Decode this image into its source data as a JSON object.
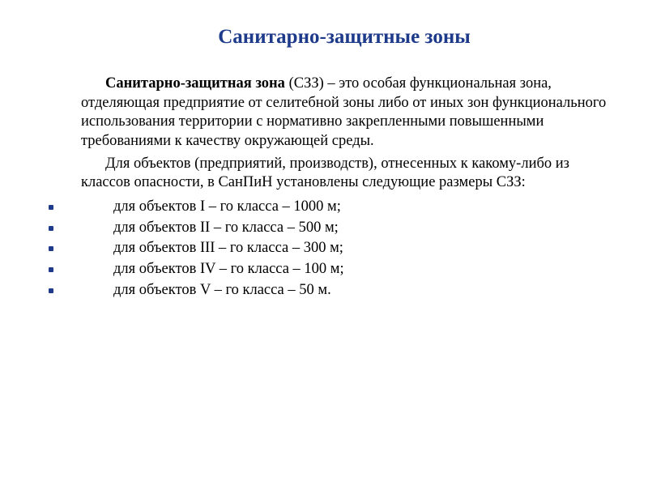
{
  "title": "Санитарно-защитные зоны",
  "para1_bold": "Санитарно-защитная зона",
  "para1_rest": " (СЗЗ)  – это особая функциональная зона, отделяющая предприятие от селитебной зоны либо от иных зон функционального использования территории с нормативно закрепленными повышенными требованиями к качеству окружающей среды.",
  "para2": "Для объектов (предприятий, производств), отнесенных к какому-либо из классов опасности, в СанПиН установлены следующие размеры СЗЗ:",
  "items": [
    "для  объектов I – го  класса   – 1000 м;",
    "для  объектов II – го  класса   –  500 м;",
    "для  объектов III – го класса  –  300 м;",
    "для  объектов IV – го класса  –  100 м;",
    "для  объектов  V – го класса  –    50 м."
  ],
  "colors": {
    "title": "#1e3a8a",
    "text": "#000000",
    "bullet": "#1e3a8a",
    "background": "#ffffff"
  },
  "typography": {
    "title_fontsize": 25,
    "body_fontsize": 18.5,
    "font_family": "Times New Roman"
  }
}
